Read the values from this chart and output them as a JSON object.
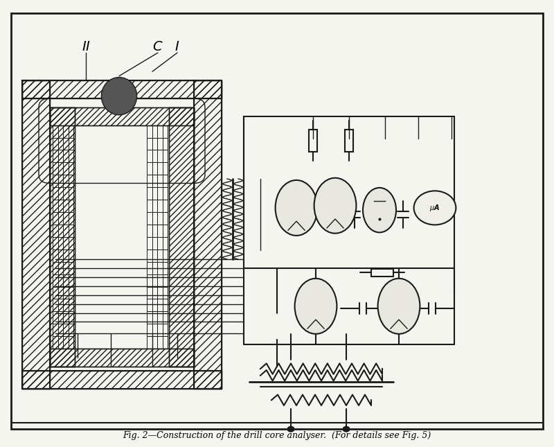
{
  "title": "Fig. 2—Construction of the drill core analyser.  (For details see Fig. 5)",
  "bg_color": "#f5f5f0",
  "border_color": "#1a1a1a",
  "line_color": "#1a1a1a",
  "labels": {
    "II": [
      0.155,
      0.895
    ],
    "C": [
      0.295,
      0.895
    ],
    "I": [
      0.325,
      0.895
    ]
  },
  "fig_width": 8.0,
  "fig_height": 6.45
}
